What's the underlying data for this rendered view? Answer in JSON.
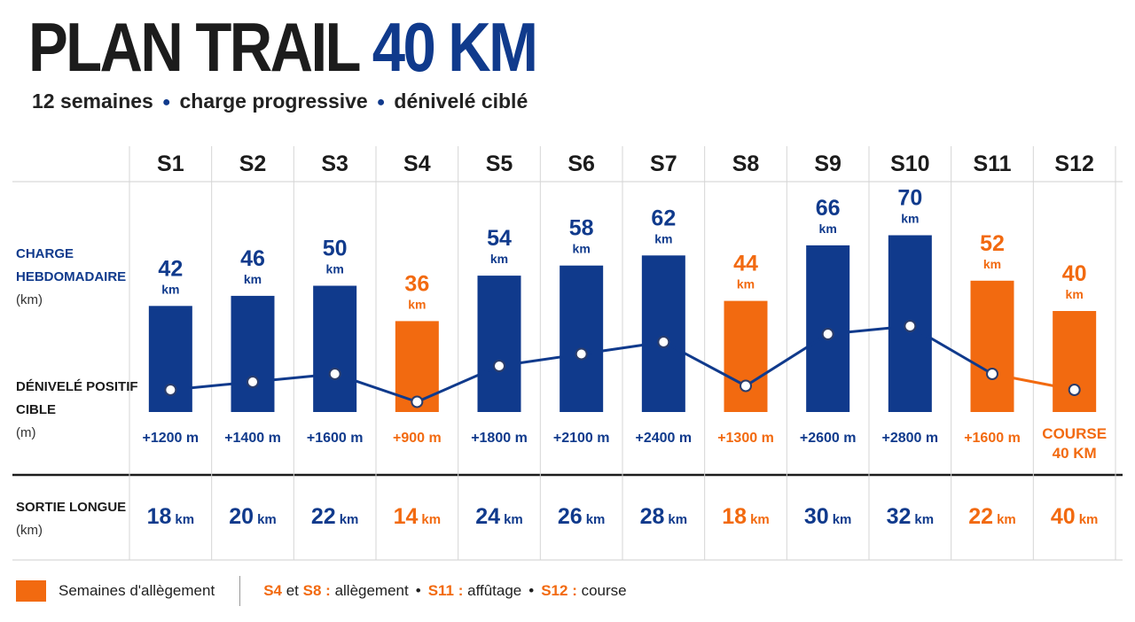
{
  "header": {
    "title_main": "PLAN TRAIL",
    "title_accent": "40 KM",
    "subtitle_parts": [
      "12 semaines",
      "charge progressive",
      "dénivelé ciblé"
    ]
  },
  "row_labels": {
    "charge_line1": "CHARGE",
    "charge_line2": "HEBDOMADAIRE",
    "charge_unit": "(km)",
    "deniv_line1": "DÉNIVELÉ POSITIF",
    "deniv_line2": "CIBLE",
    "deniv_unit": "(m)",
    "sortie_line1": "SORTIE LONGUE",
    "sortie_unit": "(km)"
  },
  "legend": {
    "swatch_label": "Semaines d'allègement",
    "n1": "S4",
    "t1": "et",
    "n2": "S8 :",
    "t2": "allègement",
    "n3": "S11 :",
    "t3": "affûtage",
    "n4": "S12 :",
    "t4": "course",
    "bullet": "•"
  },
  "colors": {
    "blue": "#103a8c",
    "orange": "#f26a10"
  },
  "chart_data": {
    "type": "bar",
    "categories": [
      "S1",
      "S2",
      "S3",
      "S4",
      "S5",
      "S6",
      "S7",
      "S8",
      "S9",
      "S10",
      "S11",
      "S12"
    ],
    "series": [
      {
        "name": "CHARGE HEBDOMADAIRE",
        "unit": "km",
        "values": [
          42,
          46,
          50,
          36,
          54,
          58,
          62,
          44,
          66,
          70,
          52,
          40
        ]
      },
      {
        "name": "DÉNIVELÉ POSITIF CIBLE",
        "unit": "m",
        "type": "line",
        "values": [
          1200,
          1400,
          1600,
          900,
          1800,
          2100,
          2400,
          1300,
          2600,
          2800,
          1600,
          1200
        ]
      },
      {
        "name": "SORTIE LONGUE",
        "unit": "km",
        "values": [
          18,
          20,
          22,
          14,
          24,
          26,
          28,
          18,
          30,
          32,
          22,
          40
        ]
      }
    ],
    "deniv_labels": [
      "+1200 m",
      "+1400 m",
      "+1600 m",
      "+900 m",
      "+1800 m",
      "+2100 m",
      "+2400 m",
      "+1300 m",
      "+2600 m",
      "+2800 m",
      "+1600 m",
      "COURSE\n40 KM"
    ],
    "unit_label": "km",
    "highlight_weeks": [
      "S4",
      "S8",
      "S11",
      "S12"
    ]
  }
}
